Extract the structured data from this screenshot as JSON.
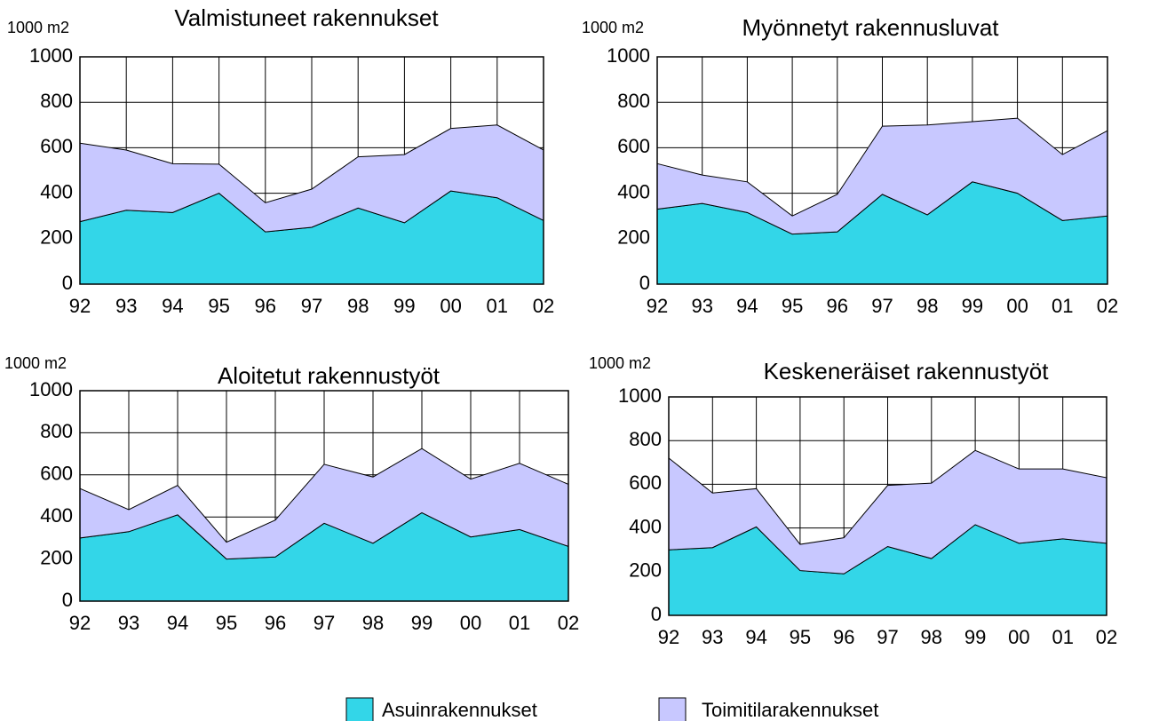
{
  "chart_data": [
    {
      "type": "stacked_area",
      "title": "Valmistuneet rakennukset",
      "ylabel": "1000 m2",
      "categories": [
        "92",
        "93",
        "94",
        "95",
        "96",
        "97",
        "98",
        "99",
        "00",
        "01",
        "02"
      ],
      "series": [
        {
          "name": "Asuinrakennukset",
          "color": "#33d6e8",
          "values": [
            275,
            325,
            315,
            400,
            230,
            250,
            335,
            270,
            410,
            380,
            280
          ]
        },
        {
          "name": "Toimitilarakennukset",
          "color": "#c8c8ff",
          "values": [
            345,
            265,
            215,
            128,
            128,
            168,
            225,
            300,
            275,
            320,
            310
          ]
        }
      ],
      "ylim": [
        0,
        1000
      ],
      "yticks": [
        0,
        200,
        400,
        600,
        800,
        1000
      ],
      "grid": true
    },
    {
      "type": "stacked_area",
      "title": "Myönnetyt rakennusluvat",
      "ylabel": "1000 m2",
      "categories": [
        "92",
        "93",
        "94",
        "95",
        "96",
        "97",
        "98",
        "99",
        "00",
        "01",
        "02"
      ],
      "series": [
        {
          "name": "Asuinrakennukset",
          "color": "#33d6e8",
          "values": [
            330,
            355,
            315,
            220,
            230,
            395,
            305,
            450,
            400,
            280,
            300
          ]
        },
        {
          "name": "Toimitilarakennukset",
          "color": "#c8c8ff",
          "values": [
            200,
            125,
            135,
            80,
            165,
            300,
            395,
            265,
            330,
            290,
            375
          ]
        }
      ],
      "ylim": [
        0,
        1000
      ],
      "yticks": [
        0,
        200,
        400,
        600,
        800,
        1000
      ],
      "grid": true
    },
    {
      "type": "stacked_area",
      "title": "Aloitetut rakennustyöt",
      "ylabel": "1000 m2",
      "categories": [
        "92",
        "93",
        "94",
        "95",
        "96",
        "97",
        "98",
        "99",
        "00",
        "01",
        "02"
      ],
      "series": [
        {
          "name": "Asuinrakennukset",
          "color": "#33d6e8",
          "values": [
            300,
            330,
            410,
            200,
            210,
            370,
            275,
            420,
            305,
            340,
            260
          ]
        },
        {
          "name": "Toimitilarakennukset",
          "color": "#c8c8ff",
          "values": [
            235,
            105,
            140,
            80,
            175,
            280,
            315,
            305,
            275,
            315,
            295
          ]
        }
      ],
      "ylim": [
        0,
        1000
      ],
      "yticks": [
        0,
        200,
        400,
        600,
        800,
        1000
      ],
      "grid": true
    },
    {
      "type": "stacked_area",
      "title": "Keskeneräiset rakennustyöt",
      "ylabel": "1000 m2",
      "categories": [
        "92",
        "93",
        "94",
        "95",
        "96",
        "97",
        "98",
        "99",
        "00",
        "01",
        "02"
      ],
      "series": [
        {
          "name": "Asuinrakennukset",
          "color": "#33d6e8",
          "values": [
            300,
            310,
            405,
            205,
            190,
            315,
            260,
            415,
            330,
            350,
            330
          ]
        },
        {
          "name": "Toimitilarakennukset",
          "color": "#c8c8ff",
          "values": [
            420,
            250,
            175,
            120,
            165,
            280,
            345,
            340,
            340,
            320,
            300
          ]
        }
      ],
      "ylim": [
        0,
        1000
      ],
      "yticks": [
        0,
        200,
        400,
        600,
        800,
        1000
      ],
      "grid": true
    }
  ]
}
